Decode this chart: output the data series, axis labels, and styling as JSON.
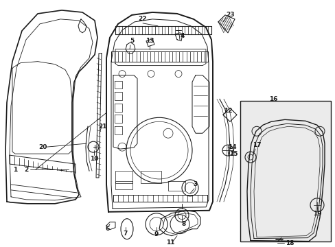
{
  "bg_color": "#ffffff",
  "line_color": "#1a1a1a",
  "fig_width": 4.89,
  "fig_height": 3.6,
  "dpi": 100,
  "fs": 6.5
}
